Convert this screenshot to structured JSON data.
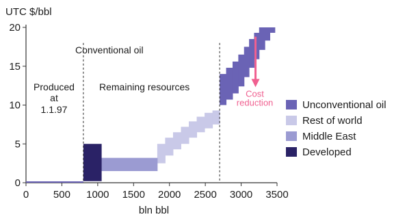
{
  "chart_data": {
    "type": "area",
    "title": "",
    "ylabel": "UTC $/bbl",
    "xlabel": "bln bbl",
    "xlim": [
      0,
      3500
    ],
    "ylim": [
      0,
      20
    ],
    "x_ticks": [
      "0",
      "500",
      "1000",
      "1500",
      "2000",
      "2500",
      "3000",
      "3500"
    ],
    "y_ticks": [
      "0",
      "5",
      "10",
      "15",
      "20"
    ],
    "x_tick_values": [
      0,
      500,
      1000,
      1500,
      2000,
      2500,
      3000,
      3500
    ],
    "y_tick_values": [
      0,
      5,
      10,
      15,
      20
    ],
    "grid": false,
    "legend_position": "right",
    "annotations": {
      "conventional": "Conventional oil",
      "produced": [
        "Produced",
        "at",
        "1.1.97"
      ],
      "remaining": "Remaining resources",
      "cost": [
        "Cost",
        "reduction"
      ]
    },
    "dividers_x": [
      800,
      2700
    ],
    "produced_baseline": {
      "x": [
        0,
        800
      ],
      "y": 0
    },
    "series": [
      {
        "name": "Unconventional oil",
        "color": "#6a63b5",
        "blocks": [
          {
            "x0": 2700,
            "x1": 2790,
            "ylow": 10,
            "yhigh": 14
          },
          {
            "x0": 2790,
            "x1": 2880,
            "ylow": 10.7,
            "yhigh": 14.8
          },
          {
            "x0": 2880,
            "x1": 2960,
            "ylow": 11.5,
            "yhigh": 15.6
          },
          {
            "x0": 2960,
            "x1": 3040,
            "ylow": 12.4,
            "yhigh": 16.5
          },
          {
            "x0": 3040,
            "x1": 3110,
            "ylow": 13.6,
            "yhigh": 17.5
          },
          {
            "x0": 3110,
            "x1": 3180,
            "ylow": 14.8,
            "yhigh": 18.5
          },
          {
            "x0": 3180,
            "x1": 3250,
            "ylow": 15.9,
            "yhigh": 19.3
          },
          {
            "x0": 3250,
            "x1": 3330,
            "ylow": 17.1,
            "yhigh": 20
          },
          {
            "x0": 3330,
            "x1": 3400,
            "ylow": 18.3,
            "yhigh": 20
          },
          {
            "x0": 3400,
            "x1": 3470,
            "ylow": 19.3,
            "yhigh": 20
          }
        ]
      },
      {
        "name": "Rest of world",
        "color": "#c9c9e8",
        "blocks": [
          {
            "x0": 1830,
            "x1": 1940,
            "ylow": 2.5,
            "yhigh": 5
          },
          {
            "x0": 1940,
            "x1": 2050,
            "ylow": 3.5,
            "yhigh": 5.8
          },
          {
            "x0": 2050,
            "x1": 2160,
            "ylow": 4.3,
            "yhigh": 6.5
          },
          {
            "x0": 2160,
            "x1": 2270,
            "ylow": 5,
            "yhigh": 7.2
          },
          {
            "x0": 2270,
            "x1": 2380,
            "ylow": 5.8,
            "yhigh": 7.9
          },
          {
            "x0": 2380,
            "x1": 2490,
            "ylow": 6.5,
            "yhigh": 8.5
          },
          {
            "x0": 2490,
            "x1": 2600,
            "ylow": 7,
            "yhigh": 9
          },
          {
            "x0": 2600,
            "x1": 2700,
            "ylow": 7.5,
            "yhigh": 9.3
          }
        ]
      },
      {
        "name": "Middle East",
        "color": "#9b9bd2",
        "blocks": [
          {
            "x0": 1050,
            "x1": 1830,
            "ylow": 1.5,
            "yhigh": 3.2
          }
        ]
      },
      {
        "name": "Developed",
        "color": "#2a2266",
        "blocks": [
          {
            "x0": 800,
            "x1": 1050,
            "ylow": 0.2,
            "yhigh": 5
          }
        ]
      }
    ],
    "cost_arrow": {
      "x": 3200,
      "y_from": 18.8,
      "y_to": 12.3,
      "color": "#f06090"
    }
  }
}
